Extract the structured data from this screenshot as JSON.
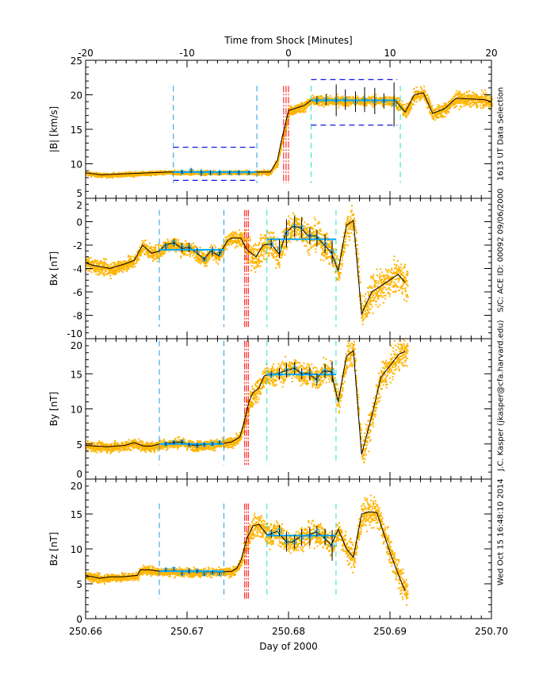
{
  "chart_data": {
    "type": "scatter",
    "top_axis": {
      "label": "Time from Shock [Minutes]",
      "range": [
        -20,
        20
      ],
      "ticks": [
        "-20",
        "-10",
        "0",
        "10",
        "20"
      ]
    },
    "xlabel": "Day of 2000",
    "xlim": [
      250.66,
      250.7
    ],
    "x_ticks": [
      "250.66",
      "250.67",
      "250.68",
      "250.69",
      "250.70"
    ],
    "colors": {
      "data": "#FFB400",
      "fit": "#000000",
      "avg": "#00A8FF",
      "up_marker": "#1E9BE6",
      "down_marker": "#1EE6C0",
      "shock": "#FF0000",
      "box": "#1414E6"
    },
    "panels": [
      {
        "ylabel": "|B| [km/s]",
        "ylim": [
          5,
          25
        ],
        "yticks": [
          5,
          10,
          15,
          20,
          25
        ],
        "yminor": 1,
        "line": [
          [
            250.66,
            8.7
          ],
          [
            250.6615,
            8.4
          ],
          [
            250.6681,
            8.8
          ],
          [
            250.6782,
            8.8
          ],
          [
            250.6789,
            10.5
          ],
          [
            250.6794,
            14
          ],
          [
            250.68,
            17.7
          ],
          [
            250.6816,
            18.5
          ],
          [
            250.6822,
            19.2
          ],
          [
            250.6905,
            19.2
          ],
          [
            250.6915,
            17.5
          ],
          [
            250.6924,
            20.0
          ],
          [
            250.6933,
            20.3
          ],
          [
            250.6942,
            17.3
          ],
          [
            250.6954,
            18.0
          ],
          [
            250.6965,
            19.5
          ],
          [
            250.6993,
            19.3
          ],
          [
            250.7,
            19.0
          ]
        ],
        "data_end": 250.7,
        "noise": [
          [
            250.66,
            250.6785,
            0.15
          ],
          [
            250.6785,
            250.6905,
            0.35
          ],
          [
            250.6905,
            250.7,
            0.5
          ]
        ],
        "upstream": [
          250.66865,
          250.67688
        ],
        "downstream": [
          250.68222,
          250.69102
        ],
        "shock": [
          250.67952,
          250.67976,
          250.68
        ],
        "marker_range": [
          7.2,
          21.3
        ],
        "avg": [
          {
            "from": 250.66865,
            "to": 250.67688,
            "value": 8.8
          },
          {
            "from": 250.68222,
            "to": 250.69072,
            "value": 19.2
          }
        ],
        "boxes": [
          {
            "from": 250.66865,
            "to": 250.67688,
            "lo": 7.6,
            "hi": 12.4
          },
          {
            "from": 250.68222,
            "to": 250.69072,
            "lo": 15.6,
            "hi": 22.2
          }
        ],
        "errbars": [
          [
            250.6695,
            8.8,
            0.3
          ],
          [
            250.6704,
            9.0,
            0.4
          ],
          [
            250.6714,
            8.7,
            0.5
          ],
          [
            250.6723,
            8.7,
            0.4
          ],
          [
            250.6732,
            8.7,
            0.4
          ],
          [
            250.6742,
            8.7,
            0.3
          ],
          [
            250.6751,
            8.7,
            0.4
          ],
          [
            250.6761,
            8.7,
            0.3
          ],
          [
            250.6828,
            19.2,
            0.6
          ],
          [
            250.6837,
            19.3,
            0.8
          ],
          [
            250.6847,
            19.2,
            2.3
          ],
          [
            250.6856,
            19.3,
            1.5
          ],
          [
            250.6866,
            19.0,
            1.5
          ],
          [
            250.6875,
            19.3,
            1.8
          ],
          [
            250.6885,
            19.1,
            1.9
          ],
          [
            250.6894,
            19.1,
            1.1
          ],
          [
            250.6904,
            18.6,
            3.2
          ]
        ]
      },
      {
        "ylabel": "Bx [nT]",
        "ylim": [
          -10,
          2
        ],
        "yticks": [
          -10,
          -8,
          -6,
          -4,
          -2,
          0,
          2
        ],
        "yminor": 0.5,
        "line": [
          [
            250.66,
            -3.5
          ],
          [
            250.6606,
            -3.7
          ],
          [
            250.6624,
            -4.0
          ],
          [
            250.6639,
            -3.6
          ],
          [
            250.6648,
            -3.3
          ],
          [
            250.6656,
            -2.0
          ],
          [
            250.6665,
            -2.7
          ],
          [
            250.6673,
            -2.5
          ],
          [
            250.6678,
            -2.0
          ],
          [
            250.6687,
            -1.8
          ],
          [
            250.6695,
            -2.3
          ],
          [
            250.6702,
            -2.2
          ],
          [
            250.671,
            -2.7
          ],
          [
            250.6717,
            -3.2
          ],
          [
            250.6723,
            -2.5
          ],
          [
            250.6731,
            -2.9
          ],
          [
            250.674,
            -1.6
          ],
          [
            250.6744,
            -1.4
          ],
          [
            250.6753,
            -1.4
          ],
          [
            250.6759,
            -2.4
          ],
          [
            250.6768,
            -3.0
          ],
          [
            250.6775,
            -2.0
          ],
          [
            250.6783,
            -1.9
          ],
          [
            250.6791,
            -2.8
          ],
          [
            250.6797,
            -1.0
          ],
          [
            250.6804,
            -0.4
          ],
          [
            250.6812,
            -0.5
          ],
          [
            250.6819,
            -1.2
          ],
          [
            250.6827,
            -1.2
          ],
          [
            250.6834,
            -1.9
          ],
          [
            250.6842,
            -2.6
          ],
          [
            250.6849,
            -4.2
          ],
          [
            250.6857,
            -0.3
          ],
          [
            250.6864,
            0.1
          ],
          [
            250.6872,
            -7.9
          ],
          [
            250.6882,
            -6.0
          ],
          [
            250.6891,
            -5.5
          ],
          [
            250.6908,
            -4.5
          ],
          [
            250.6915,
            -5.2
          ]
        ],
        "data_end": 250.6917,
        "noise": [
          [
            250.66,
            250.6755,
            0.3
          ],
          [
            250.6755,
            250.6855,
            0.6
          ],
          [
            250.6855,
            250.6917,
            0.7
          ]
        ],
        "upstream": [
          250.66727,
          250.67363
        ],
        "downstream": [
          250.67787,
          250.68468
        ],
        "shock": [
          250.67568,
          250.67586,
          250.67604
        ],
        "marker_range": [
          -9.0,
          1.0
        ],
        "avg": [
          {
            "from": 250.66727,
            "to": 250.67363,
            "value": -2.4
          },
          {
            "from": 250.67787,
            "to": 250.68468,
            "value": -1.5
          }
        ],
        "boxes": [],
        "errbars": [
          [
            250.6679,
            -2.1,
            0.3
          ],
          [
            250.6687,
            -1.8,
            0.3
          ],
          [
            250.6695,
            -2.2,
            0.4
          ],
          [
            250.6702,
            -2.2,
            0.4
          ],
          [
            250.671,
            -2.5,
            0.3
          ],
          [
            250.6717,
            -3.2,
            0.2
          ],
          [
            250.6725,
            -2.5,
            0.4
          ],
          [
            250.6732,
            -2.7,
            0.3
          ],
          [
            250.6783,
            -1.9,
            0.4
          ],
          [
            250.6791,
            -2.3,
            0.8
          ],
          [
            250.6798,
            -1.0,
            1.2
          ],
          [
            250.6806,
            -0.4,
            0.9
          ],
          [
            250.6813,
            -0.5,
            0.9
          ],
          [
            250.6821,
            -1.2,
            0.7
          ],
          [
            250.6828,
            -1.4,
            0.7
          ],
          [
            250.6836,
            -1.9,
            0.8
          ],
          [
            250.6843,
            -2.6,
            1.0
          ]
        ]
      },
      {
        "ylabel": "By [nT]",
        "ylim": [
          0,
          20
        ],
        "yticks": [
          0,
          5,
          10,
          15,
          20
        ],
        "yminor": 1,
        "line": [
          [
            250.66,
            4.8
          ],
          [
            250.6621,
            4.6
          ],
          [
            250.6639,
            4.8
          ],
          [
            250.6648,
            5.2
          ],
          [
            250.6657,
            4.7
          ],
          [
            250.6665,
            4.7
          ],
          [
            250.6673,
            5.0
          ],
          [
            250.6681,
            5.1
          ],
          [
            250.6693,
            5.3
          ],
          [
            250.6702,
            4.9
          ],
          [
            250.6708,
            4.8
          ],
          [
            250.6723,
            5.0
          ],
          [
            250.6736,
            5.1
          ],
          [
            250.6744,
            5.3
          ],
          [
            250.6752,
            6.0
          ],
          [
            250.6756,
            8.0
          ],
          [
            250.6761,
            11.0
          ],
          [
            250.6765,
            12.3
          ],
          [
            250.6771,
            13.0
          ],
          [
            250.6776,
            14.7
          ],
          [
            250.6782,
            14.9
          ],
          [
            250.6789,
            15.0
          ],
          [
            250.6798,
            15.5
          ],
          [
            250.6806,
            15.8
          ],
          [
            250.6813,
            15.0
          ],
          [
            250.6819,
            15.1
          ],
          [
            250.6827,
            14.2
          ],
          [
            250.6834,
            15.4
          ],
          [
            250.6842,
            15.3
          ],
          [
            250.6849,
            11.0
          ],
          [
            250.6857,
            17.5
          ],
          [
            250.6864,
            18.3
          ],
          [
            250.6872,
            3.5
          ],
          [
            250.6882,
            9.0
          ],
          [
            250.6891,
            14.5
          ],
          [
            250.6909,
            17.8
          ],
          [
            250.6915,
            18.2
          ]
        ],
        "data_end": 250.6917,
        "noise": [
          [
            250.66,
            250.6755,
            0.35
          ],
          [
            250.6755,
            250.6855,
            0.8
          ],
          [
            250.6855,
            250.6917,
            1.0
          ]
        ],
        "upstream": [
          250.66727,
          250.67363
        ],
        "downstream": [
          250.67787,
          250.68468
        ],
        "shock": [
          250.67568,
          250.67586,
          250.67604
        ],
        "marker_range": [
          2.0,
          19.7
        ],
        "avg": [
          {
            "from": 250.66727,
            "to": 250.67363,
            "value": 5.0
          },
          {
            "from": 250.67787,
            "to": 250.68468,
            "value": 14.9
          }
        ],
        "boxes": [],
        "errbars": [
          [
            250.6679,
            5.0,
            0.3
          ],
          [
            250.6687,
            5.2,
            0.3
          ],
          [
            250.6695,
            5.3,
            0.3
          ],
          [
            250.6702,
            4.9,
            0.3
          ],
          [
            250.671,
            4.8,
            0.4
          ],
          [
            250.6717,
            4.9,
            0.3
          ],
          [
            250.6725,
            5.0,
            0.3
          ],
          [
            250.6732,
            5.2,
            0.3
          ],
          [
            250.6783,
            14.9,
            0.5
          ],
          [
            250.6791,
            15.0,
            0.8
          ],
          [
            250.6798,
            15.5,
            1.0
          ],
          [
            250.6806,
            15.8,
            0.9
          ],
          [
            250.6813,
            15.0,
            0.8
          ],
          [
            250.6821,
            15.0,
            0.9
          ],
          [
            250.6828,
            14.2,
            0.9
          ],
          [
            250.6836,
            15.4,
            1.0
          ],
          [
            250.6843,
            15.3,
            1.5
          ]
        ]
      },
      {
        "ylabel": "Bz [nT]",
        "ylim": [
          0,
          20
        ],
        "yticks": [
          0,
          5,
          10,
          15,
          20
        ],
        "yminor": 1,
        "line": [
          [
            250.66,
            6.2
          ],
          [
            250.6614,
            5.8
          ],
          [
            250.6624,
            6.0
          ],
          [
            250.6636,
            6.0
          ],
          [
            250.6651,
            6.2
          ],
          [
            250.6654,
            7.0
          ],
          [
            250.6663,
            7.0
          ],
          [
            250.6673,
            6.8
          ],
          [
            250.6736,
            6.7
          ],
          [
            250.6744,
            6.8
          ],
          [
            250.6749,
            7.2
          ],
          [
            250.6753,
            8.3
          ],
          [
            250.6759,
            11.5
          ],
          [
            250.6765,
            13.3
          ],
          [
            250.6771,
            13.5
          ],
          [
            250.6779,
            12.0
          ],
          [
            250.6789,
            12.5
          ],
          [
            250.6798,
            11.0
          ],
          [
            250.6804,
            11.0
          ],
          [
            250.6812,
            11.8
          ],
          [
            250.6819,
            12.0
          ],
          [
            250.6827,
            12.4
          ],
          [
            250.6834,
            11.8
          ],
          [
            250.6842,
            10.5
          ],
          [
            250.6849,
            12.8
          ],
          [
            250.6857,
            10.0
          ],
          [
            250.6864,
            8.8
          ],
          [
            250.6872,
            15.0
          ],
          [
            250.6879,
            15.3
          ],
          [
            250.6887,
            15.2
          ],
          [
            250.69,
            9.5
          ],
          [
            250.6909,
            6.0
          ],
          [
            250.6915,
            4.0
          ]
        ],
        "data_end": 250.6917,
        "noise": [
          [
            250.66,
            250.6755,
            0.3
          ],
          [
            250.6755,
            250.6855,
            0.8
          ],
          [
            250.6855,
            250.6917,
            1.0
          ]
        ],
        "upstream": [
          250.66727,
          250.67363
        ],
        "downstream": [
          250.67787,
          250.68468
        ],
        "shock": [
          250.67568,
          250.67586,
          250.67604
        ],
        "marker_range": [
          2.8,
          16.5
        ],
        "avg": [
          {
            "from": 250.66727,
            "to": 250.67363,
            "value": 6.8
          },
          {
            "from": 250.67787,
            "to": 250.68468,
            "value": 11.9
          }
        ],
        "boxes": [],
        "errbars": [
          [
            250.6679,
            7.0,
            0.3
          ],
          [
            250.6687,
            7.1,
            0.3
          ],
          [
            250.6695,
            6.5,
            0.4
          ],
          [
            250.6702,
            6.8,
            0.4
          ],
          [
            250.671,
            6.8,
            0.3
          ],
          [
            250.6717,
            6.4,
            0.3
          ],
          [
            250.6725,
            6.6,
            0.3
          ],
          [
            250.6732,
            6.4,
            0.3
          ],
          [
            250.6783,
            12.2,
            0.6
          ],
          [
            250.6791,
            12.6,
            0.8
          ],
          [
            250.6798,
            11.0,
            1.4
          ],
          [
            250.6806,
            11.0,
            1.0
          ],
          [
            250.6813,
            11.6,
            1.2
          ],
          [
            250.6821,
            11.8,
            1.3
          ],
          [
            250.6828,
            12.5,
            0.8
          ],
          [
            250.6836,
            11.7,
            1.2
          ],
          [
            250.6843,
            10.5,
            2.2
          ]
        ]
      }
    ]
  },
  "side_text": "Wed Oct 15 16:48:10 2014   J.C. Kasper (jkasper@cfa.harvard.edu)   S/C: ACE ID: 00092 09/06/2000   1613 UT Data Selection"
}
